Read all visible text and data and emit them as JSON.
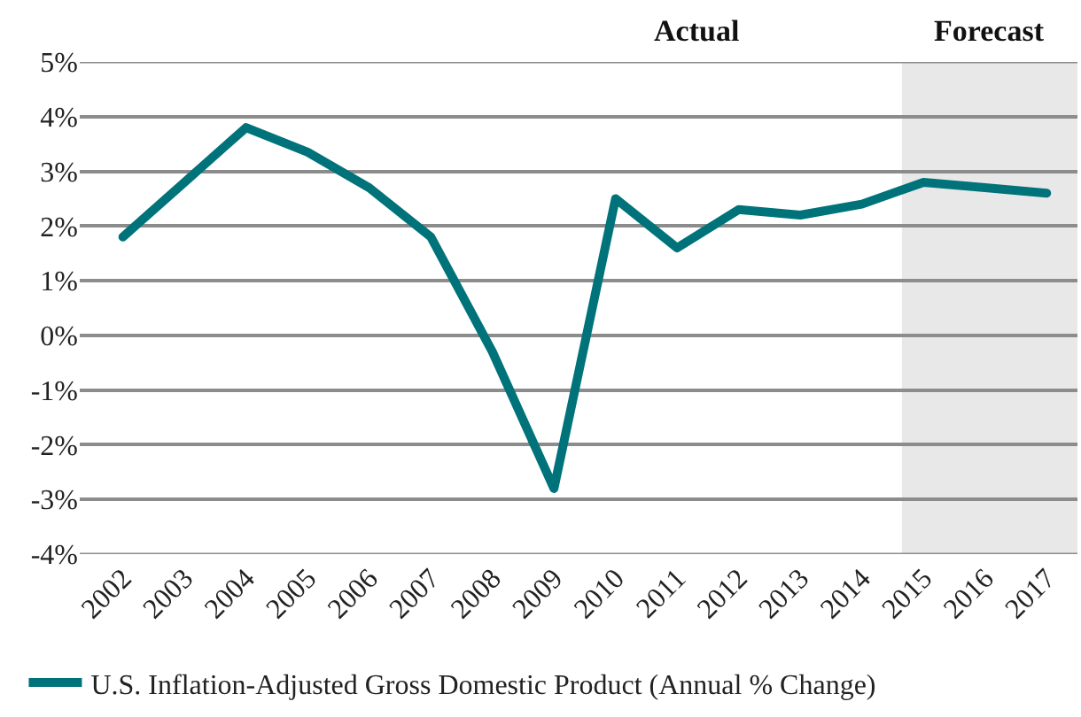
{
  "chart_data": {
    "type": "line",
    "categories": [
      "2002",
      "2003",
      "2004",
      "2005",
      "2006",
      "2007",
      "2008",
      "2009",
      "2010",
      "2011",
      "2012",
      "2013",
      "2014",
      "2015",
      "2016",
      "2017"
    ],
    "series": [
      {
        "name": "U.S. Inflation-Adjusted Gross Domestic Product (Annual % Change)",
        "color": "#00737a",
        "values": [
          1.8,
          2.8,
          3.8,
          3.35,
          2.7,
          1.8,
          -0.3,
          -2.8,
          2.5,
          1.6,
          2.3,
          2.2,
          2.4,
          2.8,
          2.7,
          2.6
        ]
      }
    ],
    "ylim": [
      -4,
      5
    ],
    "yticks": [
      {
        "value": -4,
        "label": "-4%"
      },
      {
        "value": -3,
        "label": "-3%"
      },
      {
        "value": -2,
        "label": "-2%"
      },
      {
        "value": -1,
        "label": "-1%"
      },
      {
        "value": 0,
        "label": "0%"
      },
      {
        "value": 1,
        "label": "1%"
      },
      {
        "value": 2,
        "label": "2%"
      },
      {
        "value": 3,
        "label": "3%"
      },
      {
        "value": 4,
        "label": "4%"
      },
      {
        "value": 5,
        "label": "5%"
      }
    ],
    "bands": [
      {
        "axis": "x",
        "from": "2015",
        "to": "2017",
        "label": "Forecast",
        "color": "#e8e8e8"
      }
    ],
    "annotations": [
      "Actual"
    ],
    "grid": "y",
    "legend": "bottom",
    "marker": "none",
    "line_style": "solid"
  }
}
